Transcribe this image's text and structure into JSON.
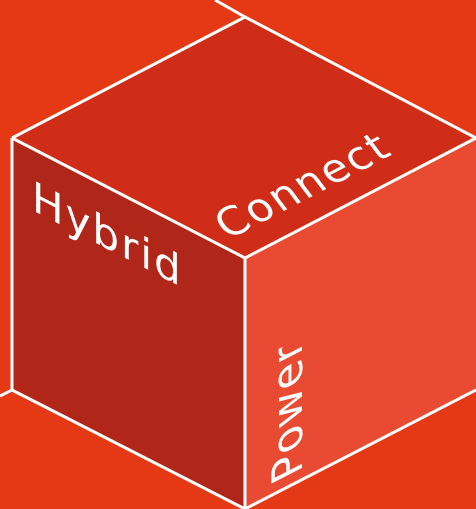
{
  "faces": [
    {
      "label": "Hybrid"
    },
    {
      "label": "Connect"
    },
    {
      "label": "Power"
    }
  ]
}
